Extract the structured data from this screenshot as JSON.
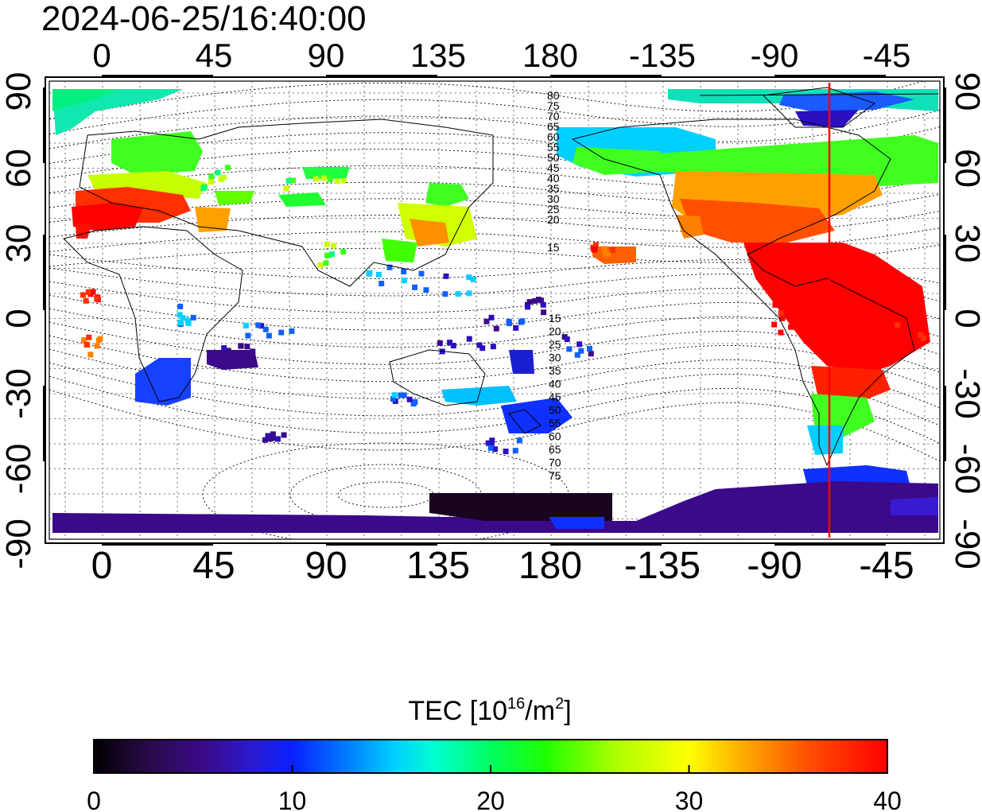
{
  "timestamp": "2024-06-25/16:40:00",
  "map": {
    "lon_ticks": [
      "0",
      "45",
      "90",
      "135",
      "180",
      "-135",
      "-90",
      "-45"
    ],
    "lat_ticks": [
      "90",
      "60",
      "30",
      "0",
      "-30",
      "-60",
      "-90"
    ],
    "north_contours": [
      "80",
      "75",
      "70",
      "65",
      "60",
      "55",
      "50",
      "45",
      "40",
      "35",
      "30",
      "25",
      "20",
      "15"
    ],
    "south_contours": [
      "15",
      "20",
      "25",
      "30",
      "35",
      "40",
      "45",
      "50",
      "55",
      "60",
      "65",
      "70",
      "75"
    ],
    "terminator_line_color": "#ff0000"
  },
  "colorbar": {
    "label": "TEC  [10",
    "label_sup1": "16",
    "label_mid": "/m",
    "label_sup2": "2",
    "label_end": "]",
    "ticks": [
      "0",
      "10",
      "20",
      "30",
      "40"
    ],
    "range": [
      0,
      40
    ],
    "colormap": [
      "#000000",
      "#2a0a4a",
      "#3a0a8a",
      "#2a1acf",
      "#0040ff",
      "#0090ff",
      "#00f0f0",
      "#00ff9a",
      "#00ff30",
      "#40ff00",
      "#c8ff00",
      "#ffff00",
      "#ffb000",
      "#ff6000",
      "#ff0000"
    ]
  }
}
